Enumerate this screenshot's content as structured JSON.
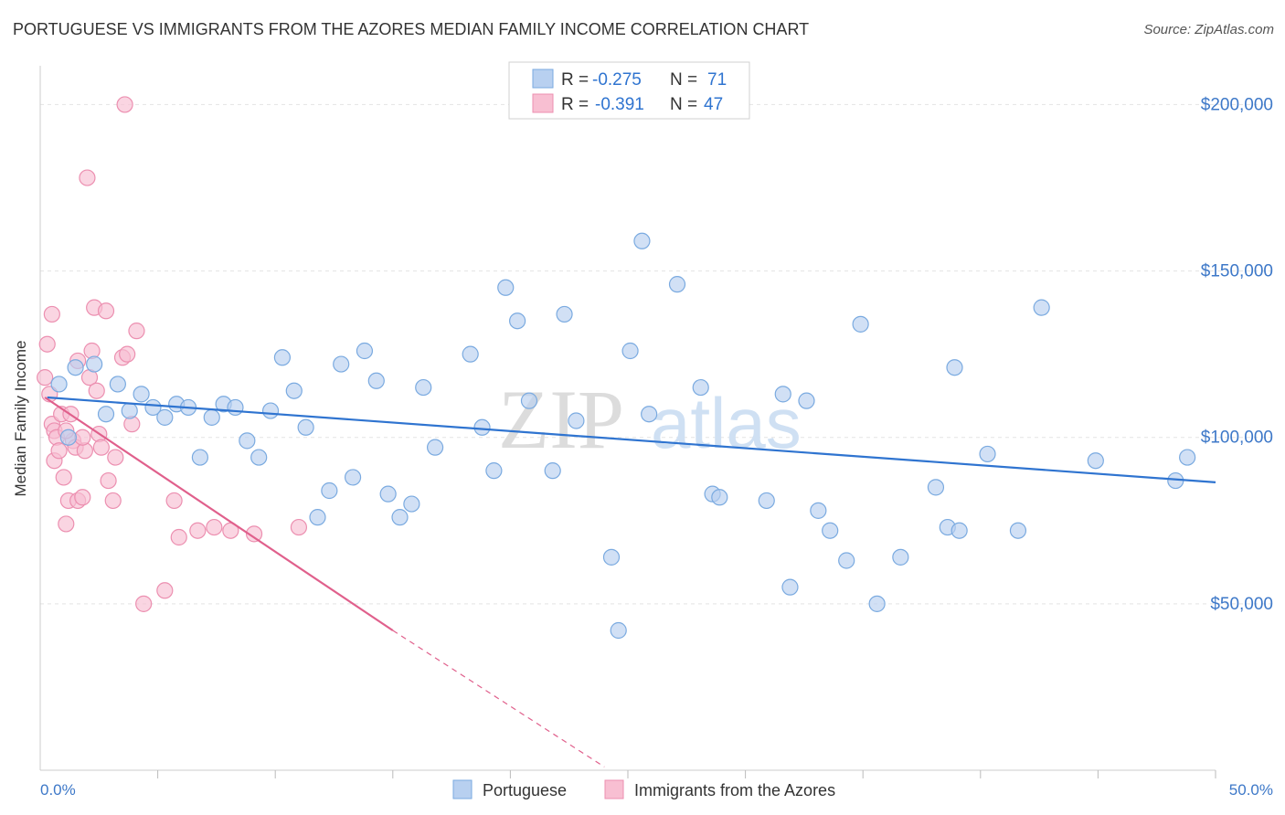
{
  "title": "PORTUGUESE VS IMMIGRANTS FROM THE AZORES MEDIAN FAMILY INCOME CORRELATION CHART",
  "source": "Source: ZipAtlas.com",
  "watermark": {
    "zip": "ZIP",
    "atlas": "atlas"
  },
  "colors": {
    "blue_fill": "#b8d0f0",
    "blue_stroke": "#7aaae0",
    "blue_line": "#2f74d0",
    "pink_fill": "#f8bfd2",
    "pink_stroke": "#ec8fb0",
    "pink_line": "#e0608c",
    "axis_label": "#3d78c8",
    "grid": "#e4e4e4"
  },
  "legend": {
    "rows": [
      {
        "r_label": "R =",
        "r_value": "-0.275",
        "n_label": "N =",
        "n_value": "71"
      },
      {
        "r_label": "R =",
        "r_value": "-0.391",
        "n_label": "N =",
        "n_value": "47"
      }
    ]
  },
  "bottom_legend": [
    "Portuguese",
    "Immigrants from the Azores"
  ],
  "chart_data": {
    "type": "scatter",
    "title": "PORTUGUESE VS IMMIGRANTS FROM THE AZORES MEDIAN FAMILY INCOME CORRELATION CHART",
    "xlabel": "",
    "ylabel": "Median Family Income",
    "xlim": [
      0,
      50
    ],
    "ylim": [
      0,
      210000
    ],
    "x_tick_labels": [
      "0.0%",
      "50.0%"
    ],
    "y_ticks": [
      50000,
      100000,
      150000,
      200000
    ],
    "y_tick_labels": [
      "$50,000",
      "$100,000",
      "$150,000",
      "$200,000"
    ],
    "grid": true,
    "legend_position": "top-center",
    "series": [
      {
        "name": "Portuguese",
        "R": -0.275,
        "N": 71,
        "trend": {
          "x": [
            0.3,
            50.0
          ],
          "y": [
            112000,
            86500
          ]
        },
        "points": [
          [
            0.8,
            116000
          ],
          [
            1.5,
            121000
          ],
          [
            2.3,
            122000
          ],
          [
            2.8,
            107000
          ],
          [
            3.3,
            116000
          ],
          [
            3.8,
            108000
          ],
          [
            4.3,
            113000
          ],
          [
            4.8,
            109000
          ],
          [
            5.3,
            106000
          ],
          [
            5.8,
            110000
          ],
          [
            6.3,
            109000
          ],
          [
            6.8,
            94000
          ],
          [
            7.3,
            106000
          ],
          [
            7.8,
            110000
          ],
          [
            8.3,
            109000
          ],
          [
            8.8,
            99000
          ],
          [
            9.3,
            94000
          ],
          [
            9.8,
            108000
          ],
          [
            10.3,
            124000
          ],
          [
            10.8,
            114000
          ],
          [
            11.3,
            103000
          ],
          [
            11.8,
            76000
          ],
          [
            12.3,
            84000
          ],
          [
            12.8,
            122000
          ],
          [
            13.3,
            88000
          ],
          [
            13.8,
            126000
          ],
          [
            14.3,
            117000
          ],
          [
            14.8,
            83000
          ],
          [
            15.3,
            76000
          ],
          [
            15.8,
            80000
          ],
          [
            16.3,
            115000
          ],
          [
            16.8,
            97000
          ],
          [
            18.3,
            125000
          ],
          [
            18.8,
            103000
          ],
          [
            19.3,
            90000
          ],
          [
            19.8,
            145000
          ],
          [
            20.3,
            135000
          ],
          [
            20.8,
            111000
          ],
          [
            21.8,
            90000
          ],
          [
            22.3,
            137000
          ],
          [
            22.8,
            105000
          ],
          [
            24.3,
            64000
          ],
          [
            24.6,
            42000
          ],
          [
            25.1,
            126000
          ],
          [
            25.6,
            159000
          ],
          [
            25.9,
            107000
          ],
          [
            27.1,
            146000
          ],
          [
            28.1,
            115000
          ],
          [
            28.6,
            83000
          ],
          [
            28.9,
            82000
          ],
          [
            30.9,
            81000
          ],
          [
            31.6,
            113000
          ],
          [
            31.9,
            55000
          ],
          [
            32.6,
            111000
          ],
          [
            33.1,
            78000
          ],
          [
            33.6,
            72000
          ],
          [
            34.3,
            63000
          ],
          [
            34.9,
            134000
          ],
          [
            35.6,
            50000
          ],
          [
            36.6,
            64000
          ],
          [
            38.1,
            85000
          ],
          [
            38.6,
            73000
          ],
          [
            38.9,
            121000
          ],
          [
            39.1,
            72000
          ],
          [
            40.3,
            95000
          ],
          [
            41.6,
            72000
          ],
          [
            42.6,
            139000
          ],
          [
            44.9,
            93000
          ],
          [
            48.3,
            87000
          ],
          [
            48.8,
            94000
          ],
          [
            1.2,
            100000
          ]
        ]
      },
      {
        "name": "Immigrants from the Azores",
        "R": -0.391,
        "N": 47,
        "trend": {
          "x": [
            0.2,
            15.0
          ],
          "y": [
            112000,
            42000
          ]
        },
        "trend_dashed": {
          "x": [
            15.0,
            24.0
          ],
          "y": [
            42000,
            1000
          ]
        },
        "points": [
          [
            0.2,
            118000
          ],
          [
            0.3,
            128000
          ],
          [
            0.4,
            113000
          ],
          [
            0.5,
            104000
          ],
          [
            0.6,
            93000
          ],
          [
            0.6,
            102000
          ],
          [
            0.7,
            100000
          ],
          [
            0.8,
            96000
          ],
          [
            0.9,
            107000
          ],
          [
            1.0,
            88000
          ],
          [
            1.1,
            74000
          ],
          [
            1.2,
            81000
          ],
          [
            1.3,
            107000
          ],
          [
            1.4,
            99000
          ],
          [
            1.5,
            97000
          ],
          [
            1.6,
            81000
          ],
          [
            1.8,
            82000
          ],
          [
            1.9,
            96000
          ],
          [
            2.1,
            118000
          ],
          [
            2.2,
            126000
          ],
          [
            2.3,
            139000
          ],
          [
            2.4,
            114000
          ],
          [
            2.5,
            101000
          ],
          [
            2.6,
            97000
          ],
          [
            2.8,
            138000
          ],
          [
            2.9,
            87000
          ],
          [
            3.1,
            81000
          ],
          [
            3.2,
            94000
          ],
          [
            3.5,
            124000
          ],
          [
            3.7,
            125000
          ],
          [
            3.9,
            104000
          ],
          [
            4.1,
            132000
          ],
          [
            4.4,
            50000
          ],
          [
            5.3,
            54000
          ],
          [
            5.7,
            81000
          ],
          [
            5.9,
            70000
          ],
          [
            6.7,
            72000
          ],
          [
            7.4,
            73000
          ],
          [
            8.1,
            72000
          ],
          [
            9.1,
            71000
          ],
          [
            11.0,
            73000
          ],
          [
            1.6,
            123000
          ],
          [
            0.5,
            137000
          ],
          [
            1.1,
            102000
          ],
          [
            1.8,
            100000
          ],
          [
            2.0,
            178000
          ],
          [
            3.6,
            200000
          ]
        ]
      }
    ]
  }
}
